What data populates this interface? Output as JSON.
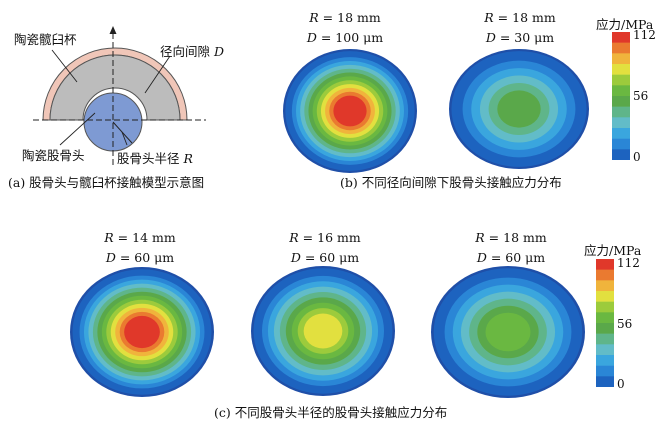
{
  "panel_a": {
    "caption": "(a) 股骨头与髋臼杯接触模型示意图",
    "label_cup": "陶瓷髋臼杯",
    "label_clearance": "径向间隙",
    "label_clearance_symbol": "D",
    "label_head": "陶瓷股骨头",
    "label_radius": "股骨头半径",
    "label_radius_symbol": "R"
  },
  "panel_b": {
    "caption": "(b) 不同径向间隙下股骨头接触应力分布",
    "plots": [
      {
        "r_sym": "R",
        "r_text": " = 18 mm",
        "d_sym": "D",
        "d_text": " = 100 μm",
        "max_level": 12
      },
      {
        "r_sym": "R",
        "r_text": " = 18 mm",
        "d_sym": "D",
        "d_text": " = 30 μm",
        "max_level": 6
      }
    ],
    "colorbar": {
      "title": "应力/MPa",
      "ticks": [
        "112",
        "56",
        "0"
      ]
    }
  },
  "panel_c": {
    "caption": "(c) 不同股骨头半径的股骨头接触应力分布",
    "plots": [
      {
        "r_sym": "R",
        "r_text": " = 14 mm",
        "d_sym": "D",
        "d_text": " = 60 μm",
        "max_level": 12
      },
      {
        "r_sym": "R",
        "r_text": " = 16 mm",
        "d_sym": "D",
        "d_text": " = 60 μm",
        "max_level": 9
      },
      {
        "r_sym": "R",
        "r_text": " = 18 mm",
        "d_sym": "D",
        "d_text": " = 60 μm",
        "max_level": 7
      }
    ],
    "colorbar": {
      "title": "应力/MPa",
      "ticks": [
        "112",
        "56",
        "0"
      ]
    }
  },
  "colors": {
    "scale": [
      "#1f4fa8",
      "#1d63bf",
      "#2a86d6",
      "#3aa6de",
      "#62bcc8",
      "#5fb58a",
      "#5aa84a",
      "#6ab841",
      "#9ccb3c",
      "#e2e03f",
      "#f0b43c",
      "#ea7a30",
      "#e0382a"
    ],
    "cup": "#bcbcbc",
    "cup_rim": "#f0c6b8",
    "head": "#7e9ad3"
  }
}
